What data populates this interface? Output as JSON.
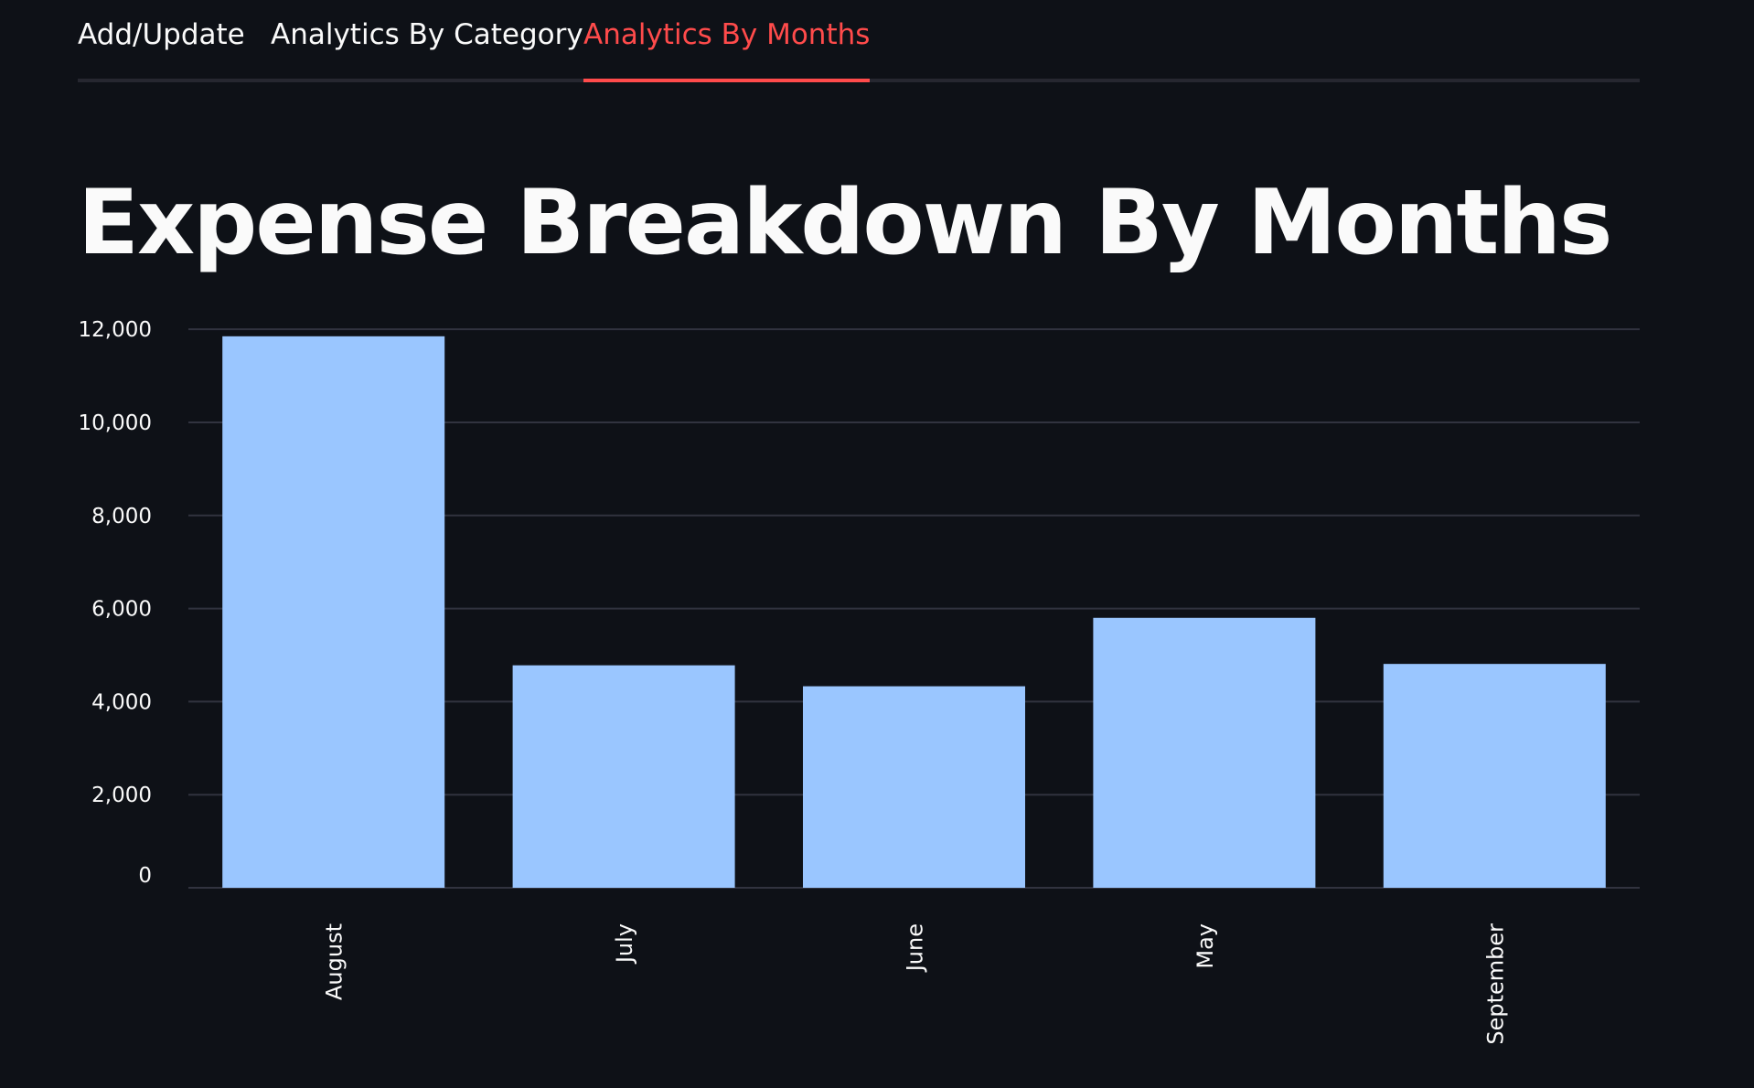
{
  "tabs": [
    {
      "label": "Add/Update",
      "active": false
    },
    {
      "label": "Analytics By Category",
      "active": false
    },
    {
      "label": "Analytics By Months",
      "active": true
    }
  ],
  "colors": {
    "background": "#0e1117",
    "accent": "#ff4b4b",
    "bar": "#9ac6ff",
    "gridline": "#31333f",
    "text": "#fafafa"
  },
  "page_title": "Expense Breakdown By Months",
  "chart_data": {
    "type": "bar",
    "categories": [
      "August",
      "July",
      "June",
      "May",
      "September"
    ],
    "values": [
      11850,
      4780,
      4330,
      5800,
      4810
    ],
    "y_ticks": [
      0,
      2000,
      4000,
      6000,
      8000,
      10000,
      12000
    ],
    "y_tick_labels": [
      "0",
      "2,000",
      "4,000",
      "6,000",
      "8,000",
      "10,000",
      "12,000"
    ],
    "ylim": [
      0,
      12200
    ],
    "grid": true,
    "legend": false,
    "title": "",
    "xlabel": "",
    "ylabel": ""
  }
}
